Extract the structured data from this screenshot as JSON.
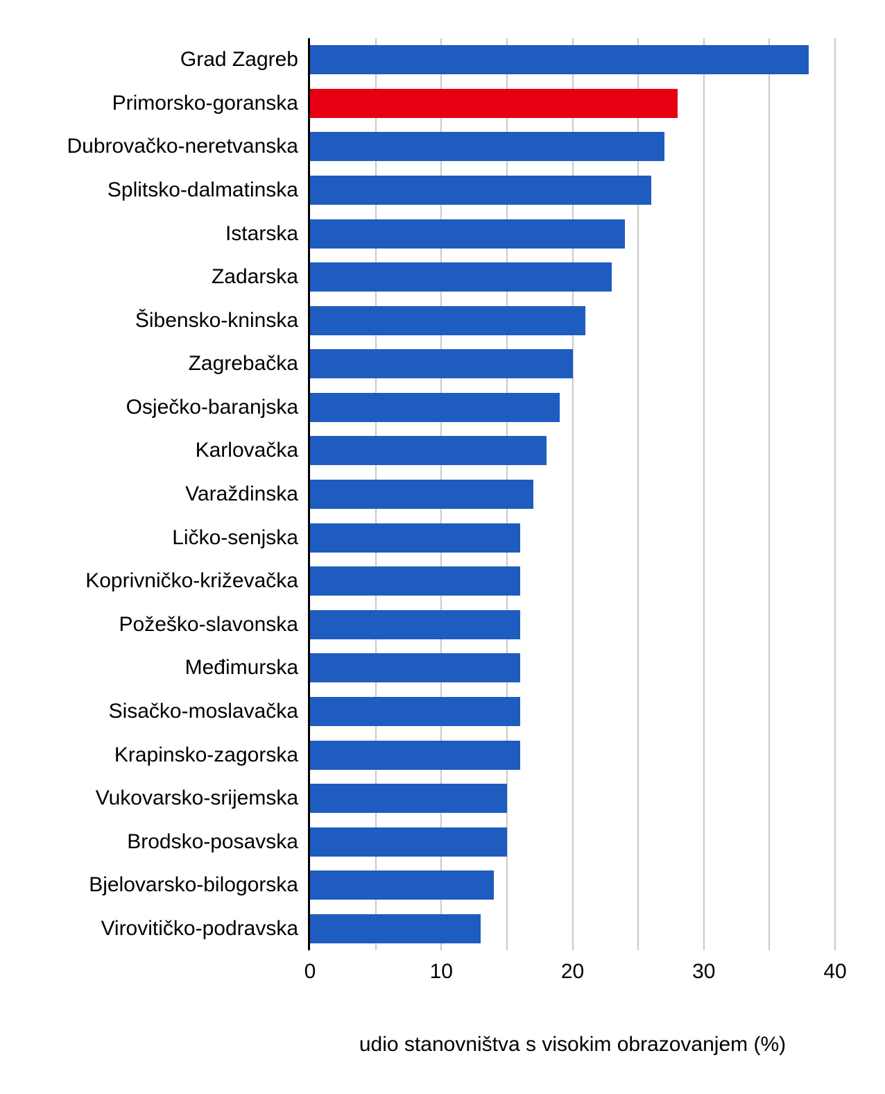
{
  "chart_data": {
    "type": "bar",
    "orientation": "horizontal",
    "title": "",
    "xlabel": "udio stanovništva s visokim obrazovanjem (%)",
    "ylabel": "",
    "xlim": [
      0,
      40
    ],
    "x_ticks": [
      0,
      10,
      20,
      30,
      40
    ],
    "gridline_values": [
      5,
      10,
      15,
      20,
      25,
      30,
      35,
      40
    ],
    "grid": "vertical-light-gray-behind-bars",
    "legend": "none",
    "categories": [
      "Grad Zagreb",
      "Primorsko-goranska",
      "Dubrovačko-neretvanska",
      "Splitsko-dalmatinska",
      "Istarska",
      "Zadarska",
      "Šibensko-kninska",
      "Zagrebačka",
      "Osječko-baranjska",
      "Karlovačka",
      "Varaždinska",
      "Ličko-senjska",
      "Koprivničko-križevačka",
      "Požeško-slavonska",
      "Međimurska",
      "Sisačko-moslavačka",
      "Krapinsko-zagorska",
      "Vukovarsko-srijemska",
      "Brodsko-posavska",
      "Bjelovarsko-bilogorska",
      "Virovitičko-podravska"
    ],
    "values": [
      38,
      28,
      27,
      26,
      24,
      23,
      21,
      20,
      19,
      18,
      17,
      16,
      16,
      16,
      16,
      16,
      16,
      15,
      15,
      14,
      13
    ],
    "highlight_index": 1,
    "highlight_category": "Primorsko-goranska",
    "colors": {
      "bar": "#1E5CC0",
      "highlight_bar": "#E60012",
      "gridline": "#C9C9C9",
      "axis_line": "#000000",
      "text": "#000000"
    }
  }
}
